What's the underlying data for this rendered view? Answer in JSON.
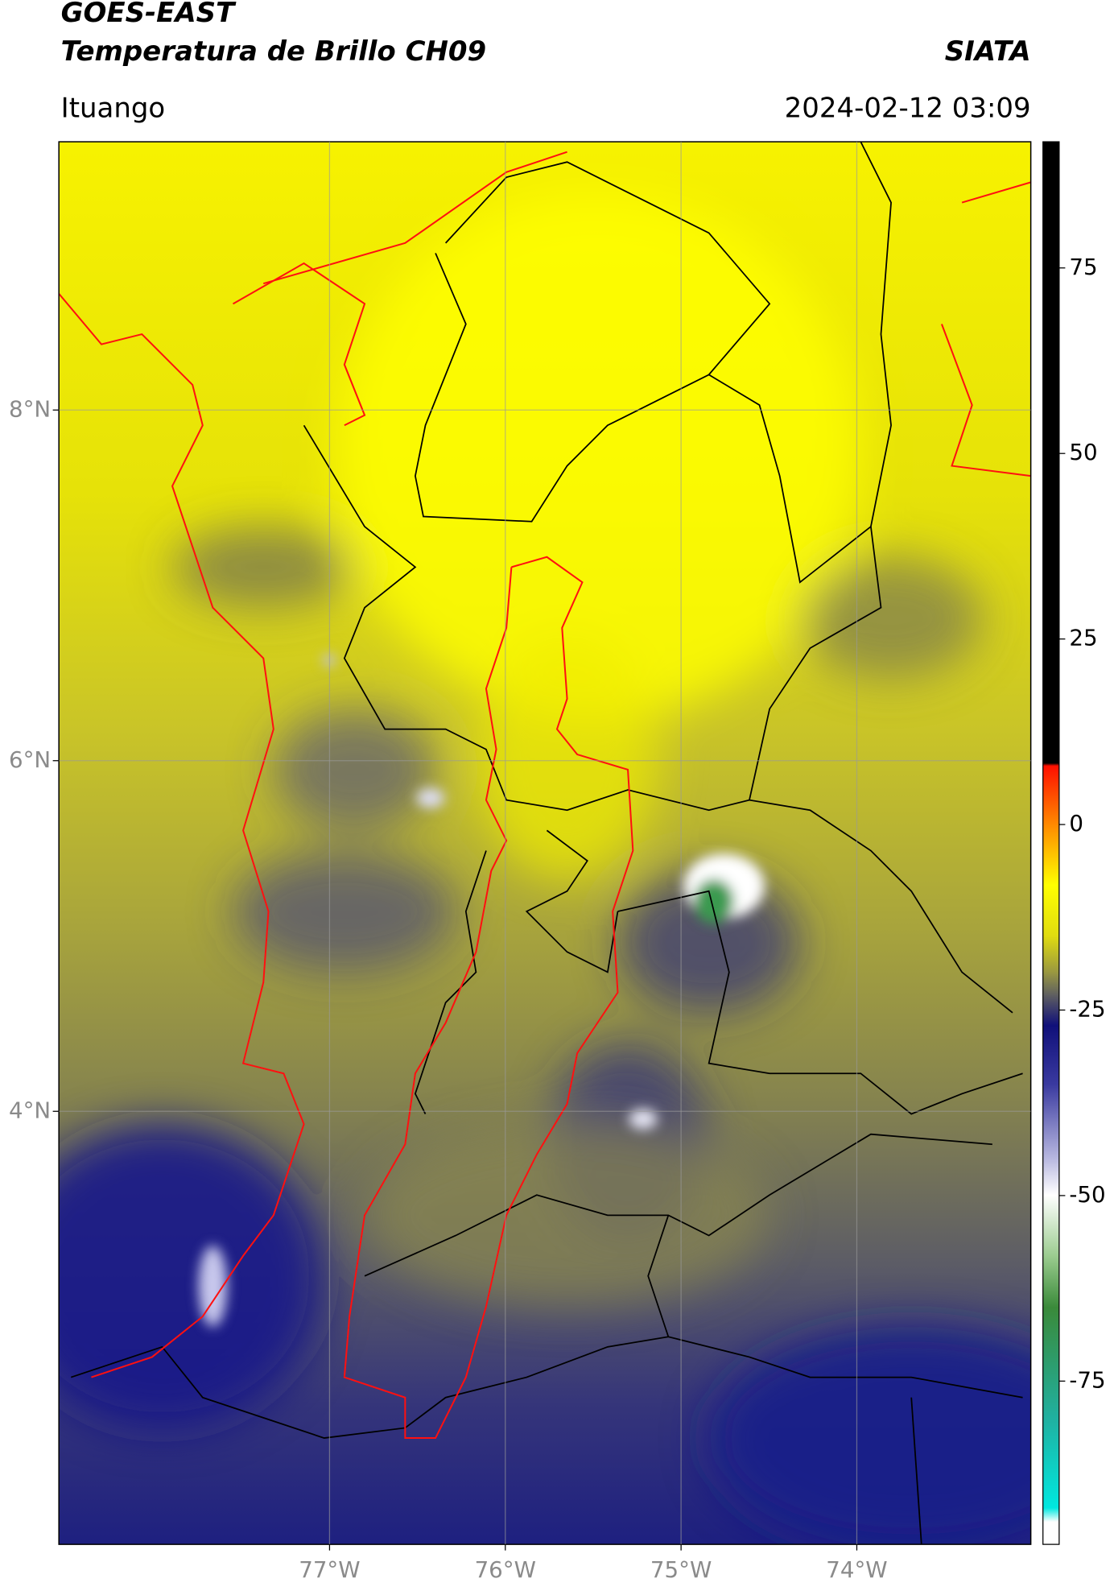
{
  "header": {
    "title": "GOES-EAST",
    "subtitle": "Temperatura de Brillo CH09",
    "source": "SIATA",
    "location": "Ituango",
    "datetime": "2024-02-12 03:09"
  },
  "map": {
    "lonlim": [
      -78.54,
      -73.01
    ],
    "latlim": [
      1.53,
      9.53
    ],
    "grid": true,
    "lon_ticks": [
      {
        "value": -77,
        "label": "77°W"
      },
      {
        "value": -76,
        "label": "76°W"
      },
      {
        "value": -75,
        "label": "75°W"
      },
      {
        "value": -74,
        "label": "74°W"
      }
    ],
    "lat_ticks": [
      {
        "value": 8,
        "label": "8°N"
      },
      {
        "value": 6,
        "label": "6°N"
      },
      {
        "value": 4,
        "label": "4°N"
      }
    ]
  },
  "colorbar": {
    "lim": [
      -97,
      92
    ],
    "ticks": [
      -75,
      -50,
      -25,
      0,
      25,
      50,
      75
    ]
  }
}
